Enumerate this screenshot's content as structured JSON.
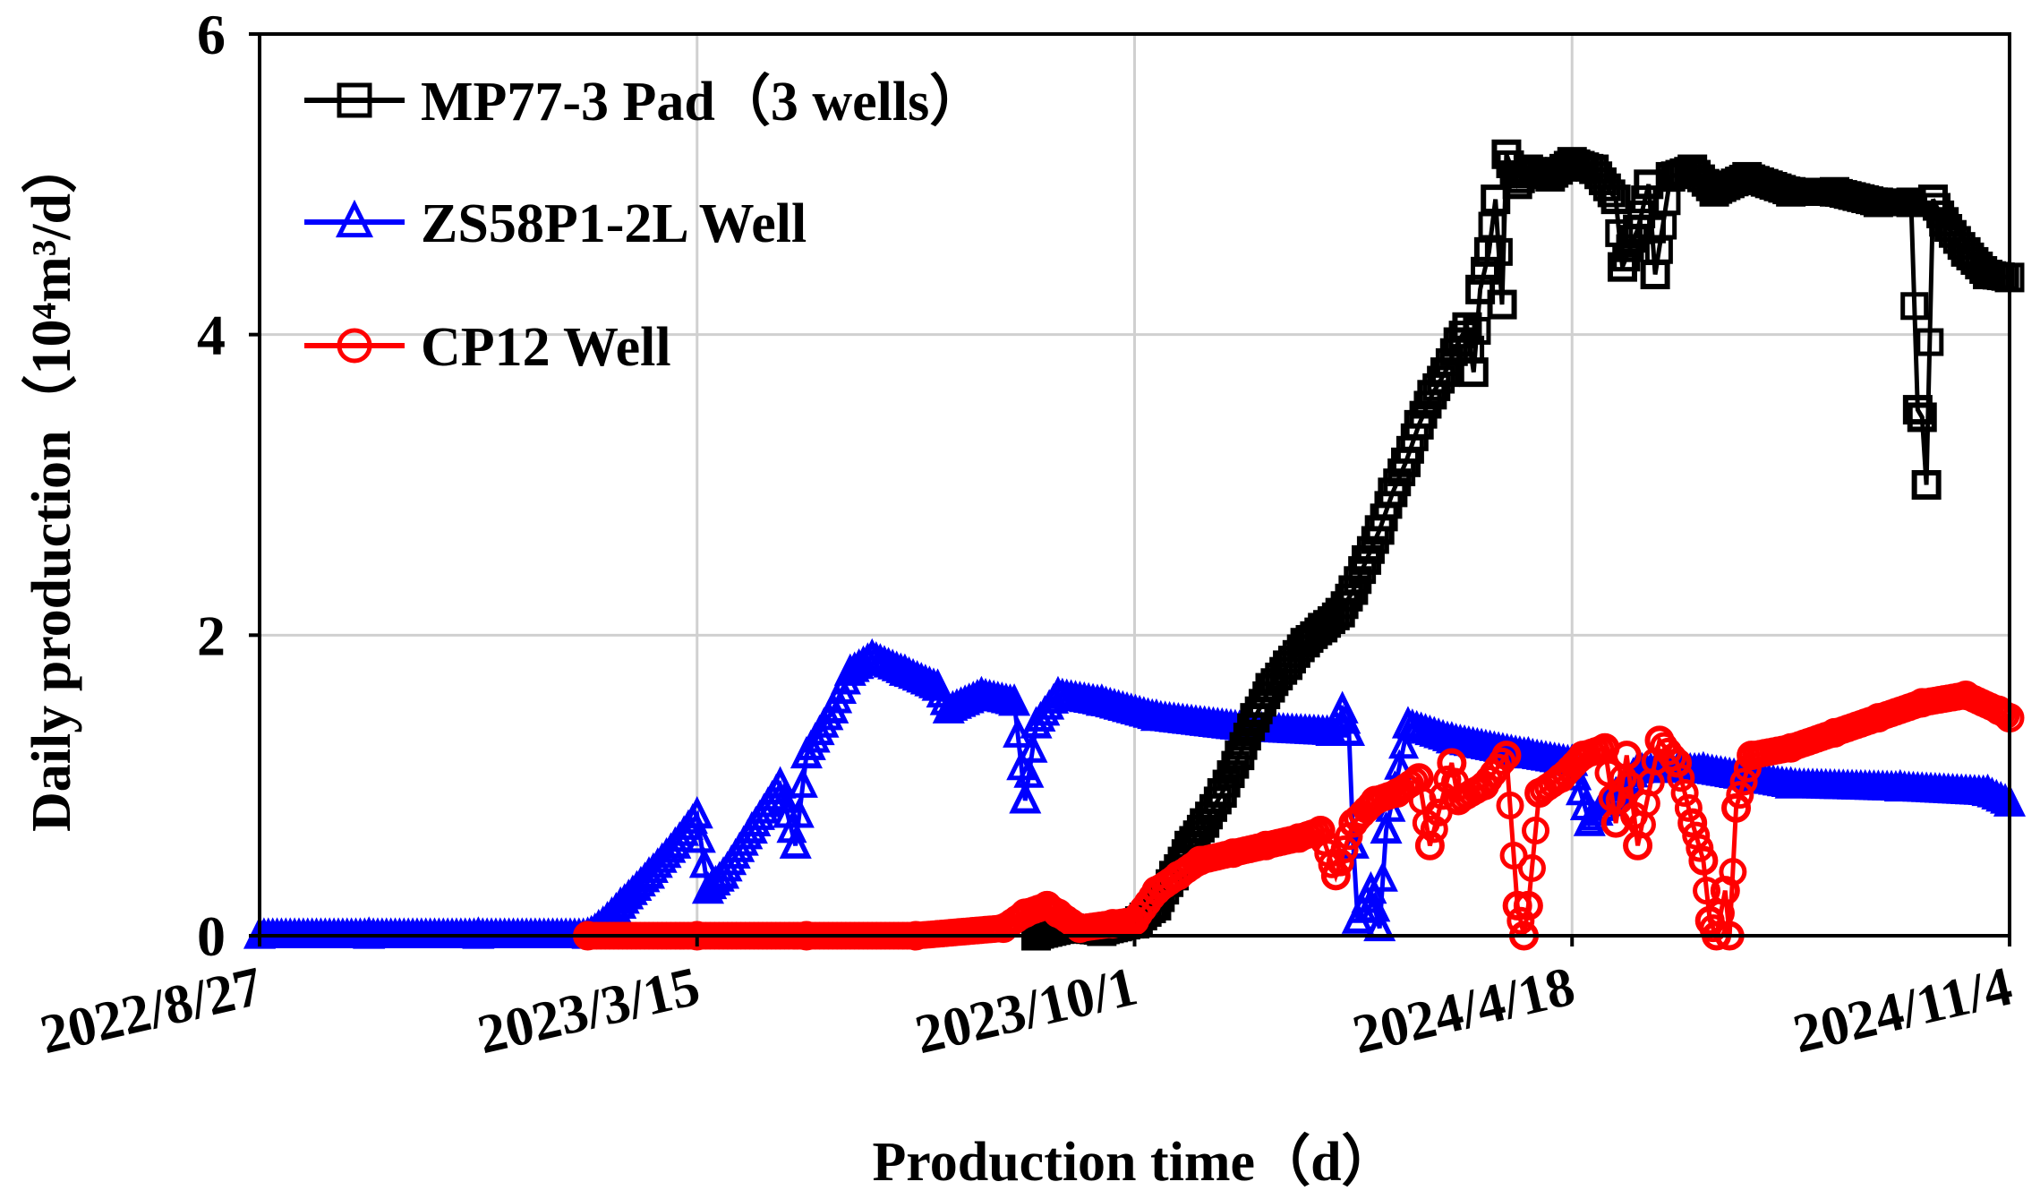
{
  "chart_data": {
    "type": "line",
    "xlabel": "Production time（d）",
    "ylabel": "Daily production（10⁴m³/d）",
    "x_ticks": [
      "2022/8/27",
      "2023/3/15",
      "2023/10/1",
      "2024/4/18",
      "2024/11/4"
    ],
    "xlim_days": [
      0,
      800
    ],
    "ylim": [
      0,
      6
    ],
    "y_ticks": [
      0,
      2,
      4,
      6
    ],
    "grid": true,
    "legend_position": "top-left",
    "series": [
      {
        "name": "MP77-3 Pad（3 wells）",
        "color": "#000000",
        "marker": "square",
        "points": [
          [
            355,
            0
          ],
          [
            370,
            0.05
          ],
          [
            385,
            0.03
          ],
          [
            400,
            0.08
          ],
          [
            410,
            0.2
          ],
          [
            418,
            0.4
          ],
          [
            425,
            0.6
          ],
          [
            432,
            0.75
          ],
          [
            440,
            0.95
          ],
          [
            448,
            1.2
          ],
          [
            455,
            1.45
          ],
          [
            462,
            1.65
          ],
          [
            470,
            1.8
          ],
          [
            478,
            1.95
          ],
          [
            486,
            2.05
          ],
          [
            494,
            2.15
          ],
          [
            500,
            2.3
          ],
          [
            506,
            2.5
          ],
          [
            512,
            2.7
          ],
          [
            518,
            2.95
          ],
          [
            524,
            3.15
          ],
          [
            530,
            3.4
          ],
          [
            536,
            3.6
          ],
          [
            542,
            3.75
          ],
          [
            548,
            3.95
          ],
          [
            552,
            4.05
          ],
          [
            555,
            3.75
          ],
          [
            558,
            4.3
          ],
          [
            562,
            4.55
          ],
          [
            565,
            4.9
          ],
          [
            568,
            4.2
          ],
          [
            570,
            5.2
          ],
          [
            575,
            5.0
          ],
          [
            580,
            5.1
          ],
          [
            590,
            5.05
          ],
          [
            600,
            5.15
          ],
          [
            610,
            5.1
          ],
          [
            620,
            4.9
          ],
          [
            623,
            4.45
          ],
          [
            630,
            4.7
          ],
          [
            635,
            5.0
          ],
          [
            638,
            4.4
          ],
          [
            645,
            5.05
          ],
          [
            655,
            5.1
          ],
          [
            665,
            4.95
          ],
          [
            680,
            5.05
          ],
          [
            700,
            4.95
          ],
          [
            720,
            4.95
          ],
          [
            740,
            4.88
          ],
          [
            755,
            4.88
          ],
          [
            758,
            3.5
          ],
          [
            760,
            3.45
          ],
          [
            762,
            3.0
          ],
          [
            765,
            4.9
          ],
          [
            770,
            4.75
          ],
          [
            780,
            4.55
          ],
          [
            790,
            4.4
          ],
          [
            800,
            4.38
          ]
        ]
      },
      {
        "name": "ZS58P1-2L Well",
        "color": "#0000ff",
        "marker": "triangle",
        "points": [
          [
            0,
            0
          ],
          [
            50,
            0
          ],
          [
            100,
            0
          ],
          [
            150,
            0
          ],
          [
            155,
            0.05
          ],
          [
            165,
            0.2
          ],
          [
            178,
            0.4
          ],
          [
            190,
            0.6
          ],
          [
            200,
            0.8
          ],
          [
            205,
            0.3
          ],
          [
            212,
            0.4
          ],
          [
            225,
            0.7
          ],
          [
            238,
            1.0
          ],
          [
            245,
            0.6
          ],
          [
            250,
            1.2
          ],
          [
            262,
            1.5
          ],
          [
            270,
            1.75
          ],
          [
            280,
            1.85
          ],
          [
            295,
            1.75
          ],
          [
            310,
            1.65
          ],
          [
            315,
            1.5
          ],
          [
            330,
            1.6
          ],
          [
            345,
            1.55
          ],
          [
            350,
            0.9
          ],
          [
            355,
            1.4
          ],
          [
            365,
            1.6
          ],
          [
            385,
            1.55
          ],
          [
            410,
            1.45
          ],
          [
            450,
            1.38
          ],
          [
            490,
            1.35
          ],
          [
            495,
            1.5
          ],
          [
            498,
            1.35
          ],
          [
            500,
            0.6
          ],
          [
            502,
            0.1
          ],
          [
            508,
            0.3
          ],
          [
            512,
            0.05
          ],
          [
            515,
            0.7
          ],
          [
            525,
            1.4
          ],
          [
            545,
            1.3
          ],
          [
            580,
            1.2
          ],
          [
            600,
            1.15
          ],
          [
            608,
            0.75
          ],
          [
            630,
            1.1
          ],
          [
            660,
            1.1
          ],
          [
            700,
            1.0
          ],
          [
            750,
            0.98
          ],
          [
            790,
            0.95
          ],
          [
            800,
            0.88
          ]
        ]
      },
      {
        "name": "CP12 Well",
        "color": "#ff0000",
        "marker": "circle",
        "points": [
          [
            150,
            0
          ],
          [
            200,
            0
          ],
          [
            250,
            0
          ],
          [
            300,
            0
          ],
          [
            340,
            0.05
          ],
          [
            350,
            0.15
          ],
          [
            360,
            0.2
          ],
          [
            365,
            0.15
          ],
          [
            375,
            0.05
          ],
          [
            390,
            0.08
          ],
          [
            400,
            0.1
          ],
          [
            410,
            0.3
          ],
          [
            420,
            0.4
          ],
          [
            430,
            0.5
          ],
          [
            445,
            0.55
          ],
          [
            460,
            0.6
          ],
          [
            475,
            0.65
          ],
          [
            485,
            0.7
          ],
          [
            492,
            0.4
          ],
          [
            500,
            0.75
          ],
          [
            510,
            0.9
          ],
          [
            520,
            0.95
          ],
          [
            530,
            1.05
          ],
          [
            535,
            0.6
          ],
          [
            545,
            1.15
          ],
          [
            548,
            0.9
          ],
          [
            560,
            1.0
          ],
          [
            570,
            1.2
          ],
          [
            575,
            0.2
          ],
          [
            578,
            0.0
          ],
          [
            580,
            0.2
          ],
          [
            585,
            0.95
          ],
          [
            595,
            1.05
          ],
          [
            605,
            1.2
          ],
          [
            615,
            1.25
          ],
          [
            620,
            0.75
          ],
          [
            625,
            1.2
          ],
          [
            630,
            0.6
          ],
          [
            640,
            1.3
          ],
          [
            648,
            1.15
          ],
          [
            655,
            0.75
          ],
          [
            660,
            0.5
          ],
          [
            663,
            0.1
          ],
          [
            666,
            0.0
          ],
          [
            670,
            0.3
          ],
          [
            672,
            0.0
          ],
          [
            675,
            0.85
          ],
          [
            682,
            1.2
          ],
          [
            700,
            1.25
          ],
          [
            720,
            1.35
          ],
          [
            740,
            1.45
          ],
          [
            760,
            1.55
          ],
          [
            780,
            1.6
          ],
          [
            795,
            1.5
          ],
          [
            800,
            1.45
          ]
        ]
      }
    ]
  }
}
